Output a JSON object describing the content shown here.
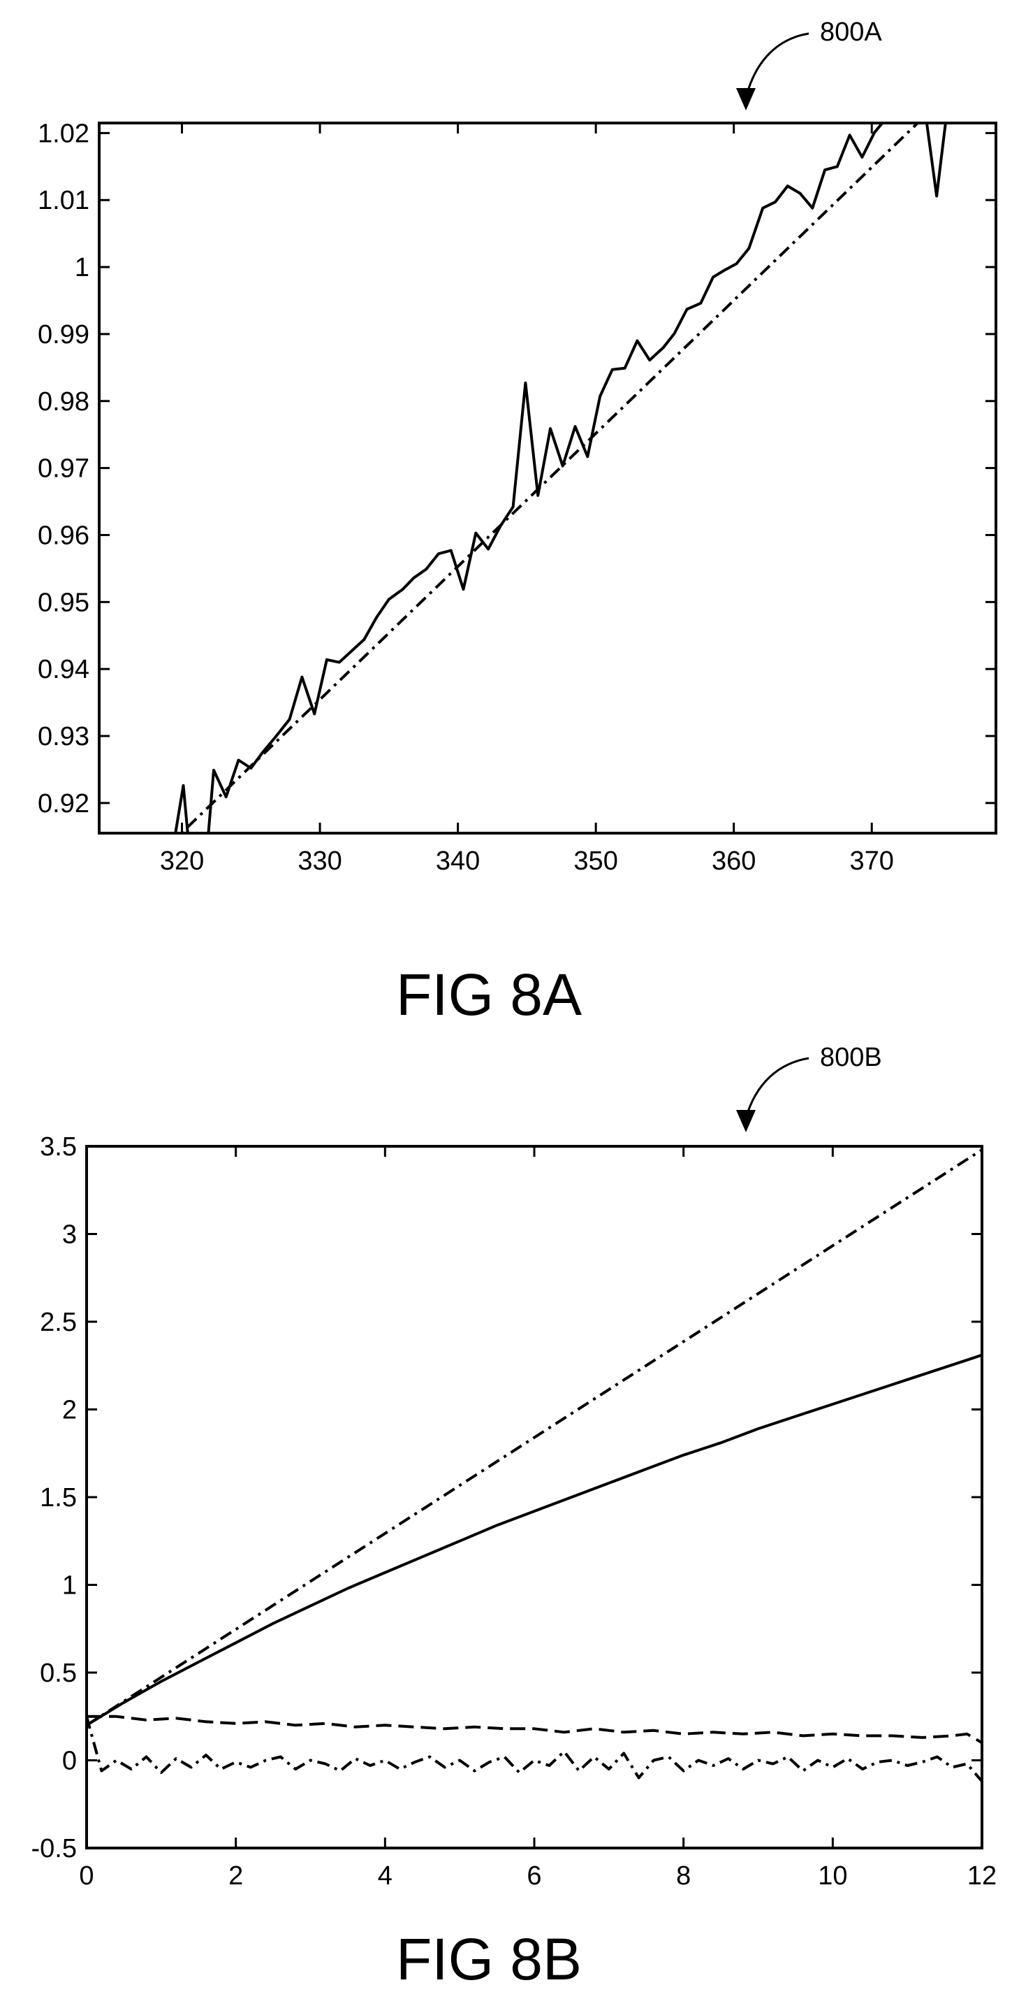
{
  "chart_data": [
    {
      "type": "line",
      "reference": "800A",
      "caption": "FIG 8A",
      "xlim": [
        314,
        379
      ],
      "ylim": [
        0.9155,
        1.0215
      ],
      "xticks": [
        320,
        330,
        340,
        350,
        360,
        370
      ],
      "xtick_labels": [
        "320",
        "330",
        "340",
        "350",
        "360",
        "370"
      ],
      "yticks": [
        0.92,
        0.93,
        0.94,
        0.95,
        0.96,
        0.97,
        0.98,
        0.99,
        1.0,
        1.01,
        1.02
      ],
      "ytick_labels": [
        "0.92",
        "0.93",
        "0.94",
        "0.95",
        "0.96",
        "0.97",
        "0.98",
        "0.99",
        "1",
        "1.01",
        "1.02"
      ],
      "grid": false,
      "series": [
        {
          "style": "solid",
          "x": [
            319.1,
            319.5,
            320.1,
            320.6,
            321.3,
            321.9,
            322.3,
            323.2,
            324.1,
            325.0,
            325.9,
            326.8,
            327.8,
            328.7,
            329.6,
            330.5,
            331.4,
            332.3,
            333.2,
            334.1,
            335.0,
            336.0,
            336.8,
            337.7,
            338.6,
            339.5,
            340.4,
            341.3,
            342.2,
            343.1,
            344.0,
            344.9,
            345.8,
            346.7,
            347.6,
            348.5,
            349.4,
            350.3,
            351.2,
            352.1,
            353.0,
            353.9,
            354.9,
            355.7,
            356.6,
            357.6,
            358.5,
            359.3,
            360.2,
            361.1,
            362.1,
            363.0,
            363.9,
            364.8,
            365.7,
            366.6,
            367.5,
            368.4,
            369.3,
            370.2,
            371.1,
            372.0,
            372.9,
            373.8,
            374.7,
            375.5,
            376.4,
            377.3,
            377.7
          ],
          "y": [
            0.9136,
            0.9151,
            0.9226,
            0.9114,
            0.9109,
            0.9151,
            0.9249,
            0.9209,
            0.9264,
            0.9252,
            0.9277,
            0.9299,
            0.9325,
            0.9388,
            0.9333,
            0.9414,
            0.941,
            0.9427,
            0.9444,
            0.9477,
            0.9504,
            0.9519,
            0.9536,
            0.9549,
            0.9572,
            0.9577,
            0.9519,
            0.9603,
            0.9579,
            0.9614,
            0.9642,
            0.9827,
            0.9659,
            0.9759,
            0.9703,
            0.9762,
            0.9717,
            0.9807,
            0.9847,
            0.9849,
            0.989,
            0.9861,
            0.988,
            0.9901,
            0.9937,
            0.9946,
            0.9985,
            0.9995,
            1.0005,
            1.0028,
            1.0088,
            1.0097,
            1.0121,
            1.011,
            1.0088,
            1.0145,
            1.015,
            1.0197,
            1.0164,
            1.0201,
            1.0223,
            1.0245,
            1.0271,
            1.0243,
            1.0106,
            1.0241,
            1.0245,
            1.0245,
            1.0245
          ]
        },
        {
          "style": "dash-dot",
          "x": [
            319.0,
            376.0
          ],
          "y": [
            0.9136,
            1.0268
          ]
        }
      ]
    },
    {
      "type": "line",
      "reference": "800B",
      "caption": "FIG 8B",
      "xlim": [
        0,
        12
      ],
      "ylim": [
        -0.5,
        3.5
      ],
      "xticks": [
        0,
        2,
        4,
        6,
        8,
        10,
        12
      ],
      "xtick_labels": [
        "0",
        "2",
        "4",
        "6",
        "8",
        "10",
        "12"
      ],
      "yticks": [
        -0.5,
        0,
        0.5,
        1,
        1.5,
        2,
        2.5,
        3,
        3.5
      ],
      "ytick_labels": [
        "-0.5",
        "0",
        "0.5",
        "1",
        "1.5",
        "2",
        "2.5",
        "3",
        "3.5"
      ],
      "grid": false,
      "series": [
        {
          "style": "dash-dot",
          "x": [
            0,
            12
          ],
          "y": [
            0.2,
            3.48
          ]
        },
        {
          "style": "solid",
          "x": [
            0,
            0.5,
            1,
            1.5,
            2,
            2.5,
            3,
            3.5,
            4,
            4.5,
            5,
            5.5,
            6,
            6.5,
            7,
            7.5,
            8,
            8.5,
            9,
            9.5,
            10,
            10.5,
            11,
            11.5,
            12
          ],
          "y": [
            0.2,
            0.33,
            0.45,
            0.56,
            0.67,
            0.78,
            0.88,
            0.98,
            1.07,
            1.16,
            1.25,
            1.34,
            1.42,
            1.5,
            1.58,
            1.66,
            1.74,
            1.81,
            1.89,
            1.96,
            2.03,
            2.1,
            2.17,
            2.24,
            2.31
          ]
        },
        {
          "style": "dashed",
          "x": [
            0,
            0.4,
            0.8,
            1.2,
            1.6,
            2.0,
            2.4,
            2.8,
            3.2,
            3.6,
            4.0,
            4.4,
            4.8,
            5.2,
            5.6,
            6.0,
            6.4,
            6.8,
            7.2,
            7.6,
            8.0,
            8.4,
            8.8,
            9.2,
            9.6,
            10.0,
            10.4,
            10.8,
            11.2,
            11.6,
            11.8,
            12.0
          ],
          "y": [
            0.25,
            0.25,
            0.23,
            0.24,
            0.22,
            0.21,
            0.22,
            0.2,
            0.21,
            0.19,
            0.2,
            0.19,
            0.18,
            0.19,
            0.18,
            0.18,
            0.16,
            0.18,
            0.16,
            0.17,
            0.15,
            0.16,
            0.15,
            0.16,
            0.14,
            0.15,
            0.14,
            0.14,
            0.13,
            0.14,
            0.15,
            0.1
          ]
        },
        {
          "style": "dash-dot",
          "x": [
            0,
            0.2,
            0.4,
            0.6,
            0.8,
            1.0,
            1.2,
            1.4,
            1.6,
            1.8,
            2.0,
            2.2,
            2.4,
            2.6,
            2.8,
            3.0,
            3.2,
            3.4,
            3.6,
            3.8,
            4.0,
            4.2,
            4.4,
            4.6,
            4.8,
            5.0,
            5.2,
            5.4,
            5.6,
            5.8,
            6.0,
            6.2,
            6.4,
            6.6,
            6.8,
            7.0,
            7.2,
            7.4,
            7.6,
            7.8,
            8.0,
            8.2,
            8.4,
            8.6,
            8.8,
            9.0,
            9.2,
            9.4,
            9.6,
            9.8,
            10.0,
            10.2,
            10.4,
            10.6,
            10.8,
            11.0,
            11.2,
            11.4,
            11.6,
            11.8,
            12.0
          ],
          "y": [
            0.25,
            -0.06,
            0.0,
            -0.05,
            0.02,
            -0.07,
            0.01,
            -0.04,
            0.03,
            -0.05,
            -0.01,
            -0.04,
            0.0,
            0.02,
            -0.05,
            0.0,
            -0.02,
            -0.06,
            0.01,
            -0.03,
            0.0,
            -0.05,
            -0.01,
            0.02,
            -0.04,
            0.0,
            -0.06,
            -0.01,
            0.02,
            -0.07,
            0.0,
            -0.03,
            0.05,
            -0.06,
            0.02,
            -0.05,
            0.04,
            -0.1,
            0.0,
            0.02,
            -0.06,
            0.0,
            -0.03,
            0.01,
            -0.05,
            0.0,
            -0.02,
            0.02,
            -0.06,
            0.0,
            -0.04,
            0.01,
            -0.05,
            -0.01,
            0.0,
            -0.03,
            -0.01,
            0.02,
            -0.04,
            -0.02,
            -0.12
          ]
        }
      ]
    }
  ]
}
